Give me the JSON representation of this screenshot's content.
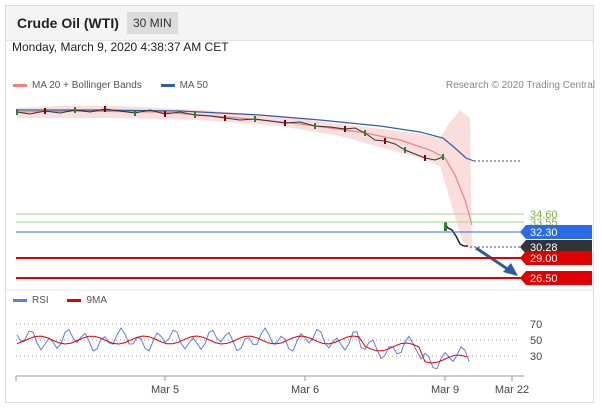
{
  "header": {
    "title": "Crude Oil (WTI)",
    "timeframe": "30 MIN"
  },
  "timestamp": "Monday, March 9, 2020 4:38:37 AM CET",
  "legend": {
    "bollinger": {
      "label": "MA 20 + Bollinger Bands",
      "color": "#f08080"
    },
    "ma50": {
      "label": "MA 50",
      "color": "#2f5f9f"
    }
  },
  "credit": "Research © 2020 Trading Central",
  "rsi_legend": {
    "rsi": {
      "label": "RSI",
      "color": "#5b7fe0"
    },
    "ma9": {
      "label": "9MA",
      "color": "#e00000"
    }
  },
  "chart_data": [
    {
      "type": "line",
      "title": "",
      "price_levels": [
        {
          "value": "34.60",
          "color": "#7cb342",
          "style": "label"
        },
        {
          "value": "33.55",
          "color": "#7cb342",
          "style": "label"
        },
        {
          "value": "32.30",
          "color": "#2b6ce6",
          "style": "tag"
        },
        {
          "value": "30.28",
          "color": "#333333",
          "style": "tag"
        },
        {
          "value": "29.00",
          "color": "#e00000",
          "style": "tag"
        },
        {
          "value": "26.50",
          "color": "#e00000",
          "style": "tag"
        }
      ]
    },
    {
      "type": "line",
      "title": "",
      "y_ticks": [
        "70",
        "50",
        "30"
      ]
    }
  ],
  "x_axis": {
    "ticks": [
      "Mar 5",
      "Mar 6",
      "Mar 9",
      "Mar 22"
    ]
  },
  "colors": {
    "up": "#2e7d32",
    "down": "#8b0000",
    "band_fill": "#f9d6d6"
  }
}
